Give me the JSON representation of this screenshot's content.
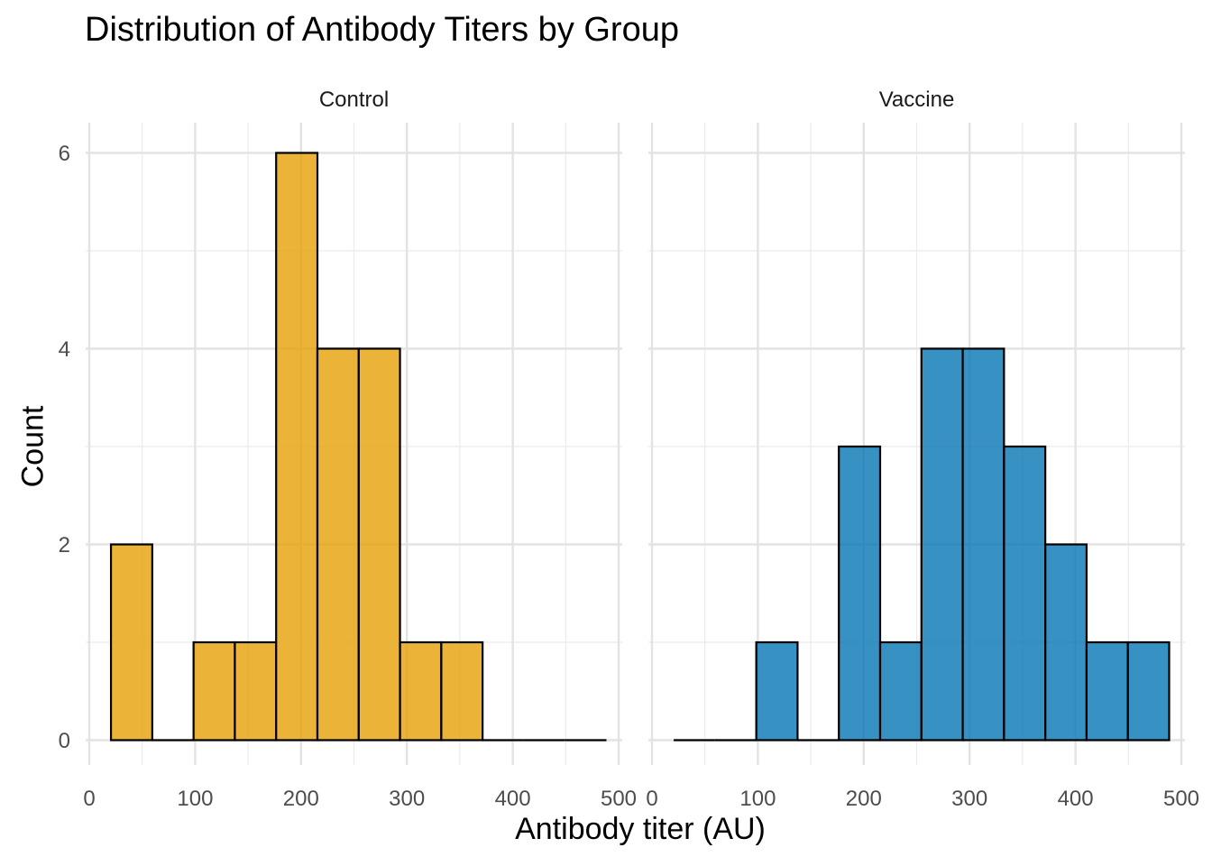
{
  "chart_data": {
    "type": "bar",
    "subtype": "faceted histogram",
    "title": "Distribution of Antibody Titers by Group",
    "xlabel": "Antibody titer (AU)",
    "ylabel": "Count",
    "xlim": [
      0,
      500
    ],
    "ylim": [
      0,
      6
    ],
    "x_ticks": [
      "0",
      "100",
      "200",
      "300",
      "400",
      "500"
    ],
    "y_ticks": [
      "0",
      "2",
      "4",
      "6"
    ],
    "grid": true,
    "legend": "none",
    "bin_edges": [
      20.5,
      59.5,
      98.5,
      137.5,
      176.5,
      215.5,
      254.5,
      293.5,
      332.5,
      371.5,
      410.5,
      449.5,
      488.5
    ],
    "facets": [
      {
        "name": "Control",
        "color": "#E69F00",
        "counts": [
          2,
          0,
          1,
          1,
          6,
          4,
          4,
          1,
          1,
          0,
          0,
          0
        ]
      },
      {
        "name": "Vaccine",
        "color": "#0072B2",
        "counts": [
          0,
          0,
          1,
          0,
          3,
          1,
          4,
          4,
          3,
          2,
          1,
          1
        ]
      }
    ]
  }
}
